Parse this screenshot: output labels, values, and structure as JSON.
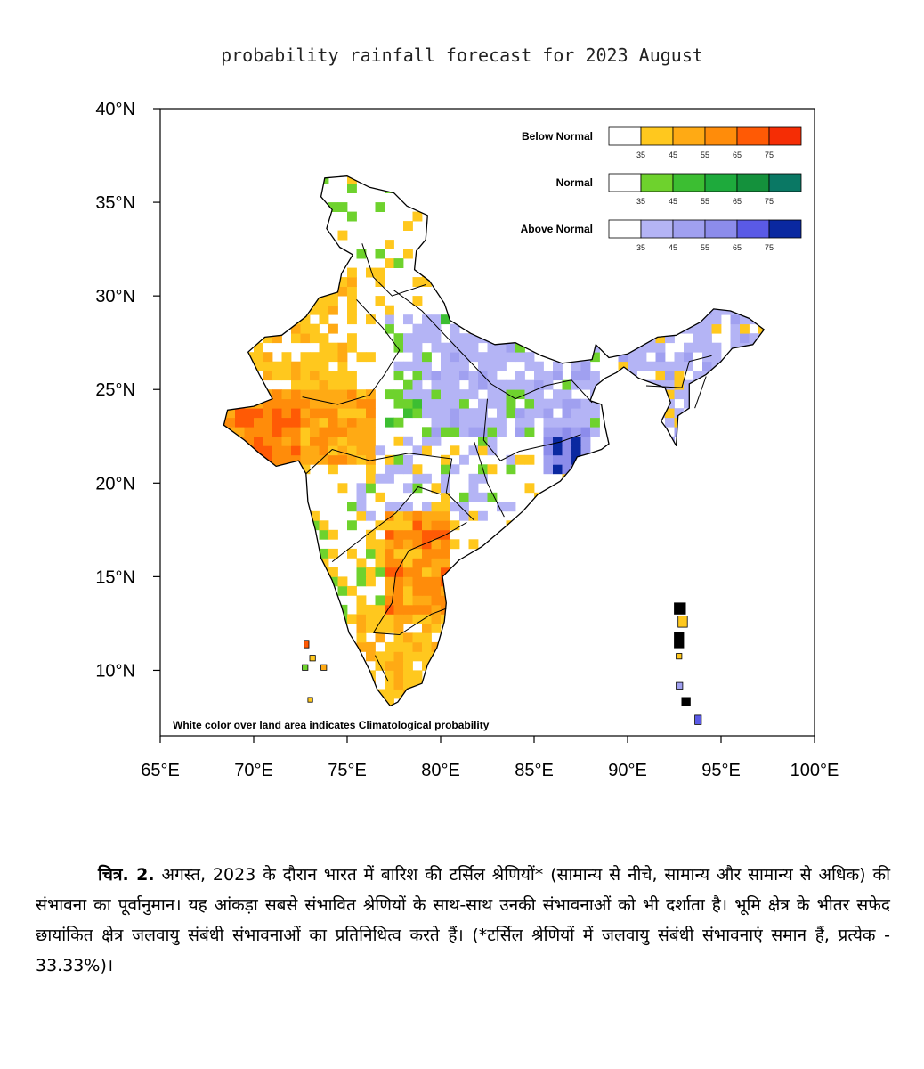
{
  "title": "probability rainfall forecast for 2023 August",
  "axes": {
    "x": {
      "min": 65,
      "max": 100,
      "ticks": [
        "65°E",
        "70°E",
        "75°E",
        "80°E",
        "85°E",
        "90°E",
        "95°E",
        "100°E"
      ],
      "tick_values": [
        65,
        70,
        75,
        80,
        85,
        90,
        95,
        100
      ]
    },
    "y": {
      "min": 6.5,
      "max": 40,
      "ticks": [
        "10°N",
        "15°N",
        "20°N",
        "25°N",
        "30°N",
        "35°N",
        "40°N"
      ],
      "tick_values": [
        10,
        15,
        20,
        25,
        30,
        35,
        40
      ]
    }
  },
  "legend": {
    "ticks": [
      "35",
      "45",
      "55",
      "65",
      "75"
    ],
    "categories": [
      {
        "name": "Below Normal",
        "colors": [
          "#ffffff",
          "#ffc81e",
          "#ffaa14",
          "#ff8c0a",
          "#ff5a05",
          "#f52d05"
        ]
      },
      {
        "name": "Normal",
        "colors": [
          "#ffffff",
          "#6ed22d",
          "#3cbe32",
          "#1eaa3c",
          "#14913c",
          "#0a7864"
        ]
      },
      {
        "name": "Above Normal",
        "colors": [
          "#ffffff",
          "#b4b4f5",
          "#a0a0f0",
          "#8c8ceb",
          "#5a5ae6",
          "#0a28a0"
        ]
      }
    ]
  },
  "note": "White color over land area indicates Climatological probability",
  "caption": {
    "label": "चित्र. 2.",
    "text": "अगस्त, 2023 के दौरान भारत में बारिश की टर्सिल श्रेणियों* (सामान्य से नीचे, सामान्य और सामान्य से अधिक) की संभावना का पूर्वानुमान। यह आंकड़ा सबसे संभावित श्रेणियों के साथ-साथ उनकी संभावनाओं को भी दर्शाता है। भूमि क्षेत्र के भीतर सफेद छायांकित क्षेत्र जलवायु संबंधी संभावनाओं का प्रतिनिधित्व करते हैं। (*टर्सिल श्रेणियों में जलवायु संबंधी संभावनाएं समान हैं, प्रत्येक - 33.33%)।"
  },
  "forecast_regions": [
    {
      "region": "gujarat-rajasthan",
      "category": "Below Normal",
      "level": 3
    },
    {
      "region": "west-rajasthan",
      "category": "Below Normal",
      "level": 1
    },
    {
      "region": "south-peninsula",
      "category": "Below Normal",
      "level": 2
    },
    {
      "region": "telangana-rayalaseema",
      "category": "Below Normal",
      "level": 3
    },
    {
      "region": "gangetic-plain",
      "category": "Above Normal",
      "level": 1
    },
    {
      "region": "odisha-coast",
      "category": "Above Normal",
      "level": 4
    },
    {
      "region": "northeast",
      "category": "Above Normal",
      "level": 1
    },
    {
      "region": "central-patches",
      "category": "Normal",
      "level": 1
    }
  ]
}
